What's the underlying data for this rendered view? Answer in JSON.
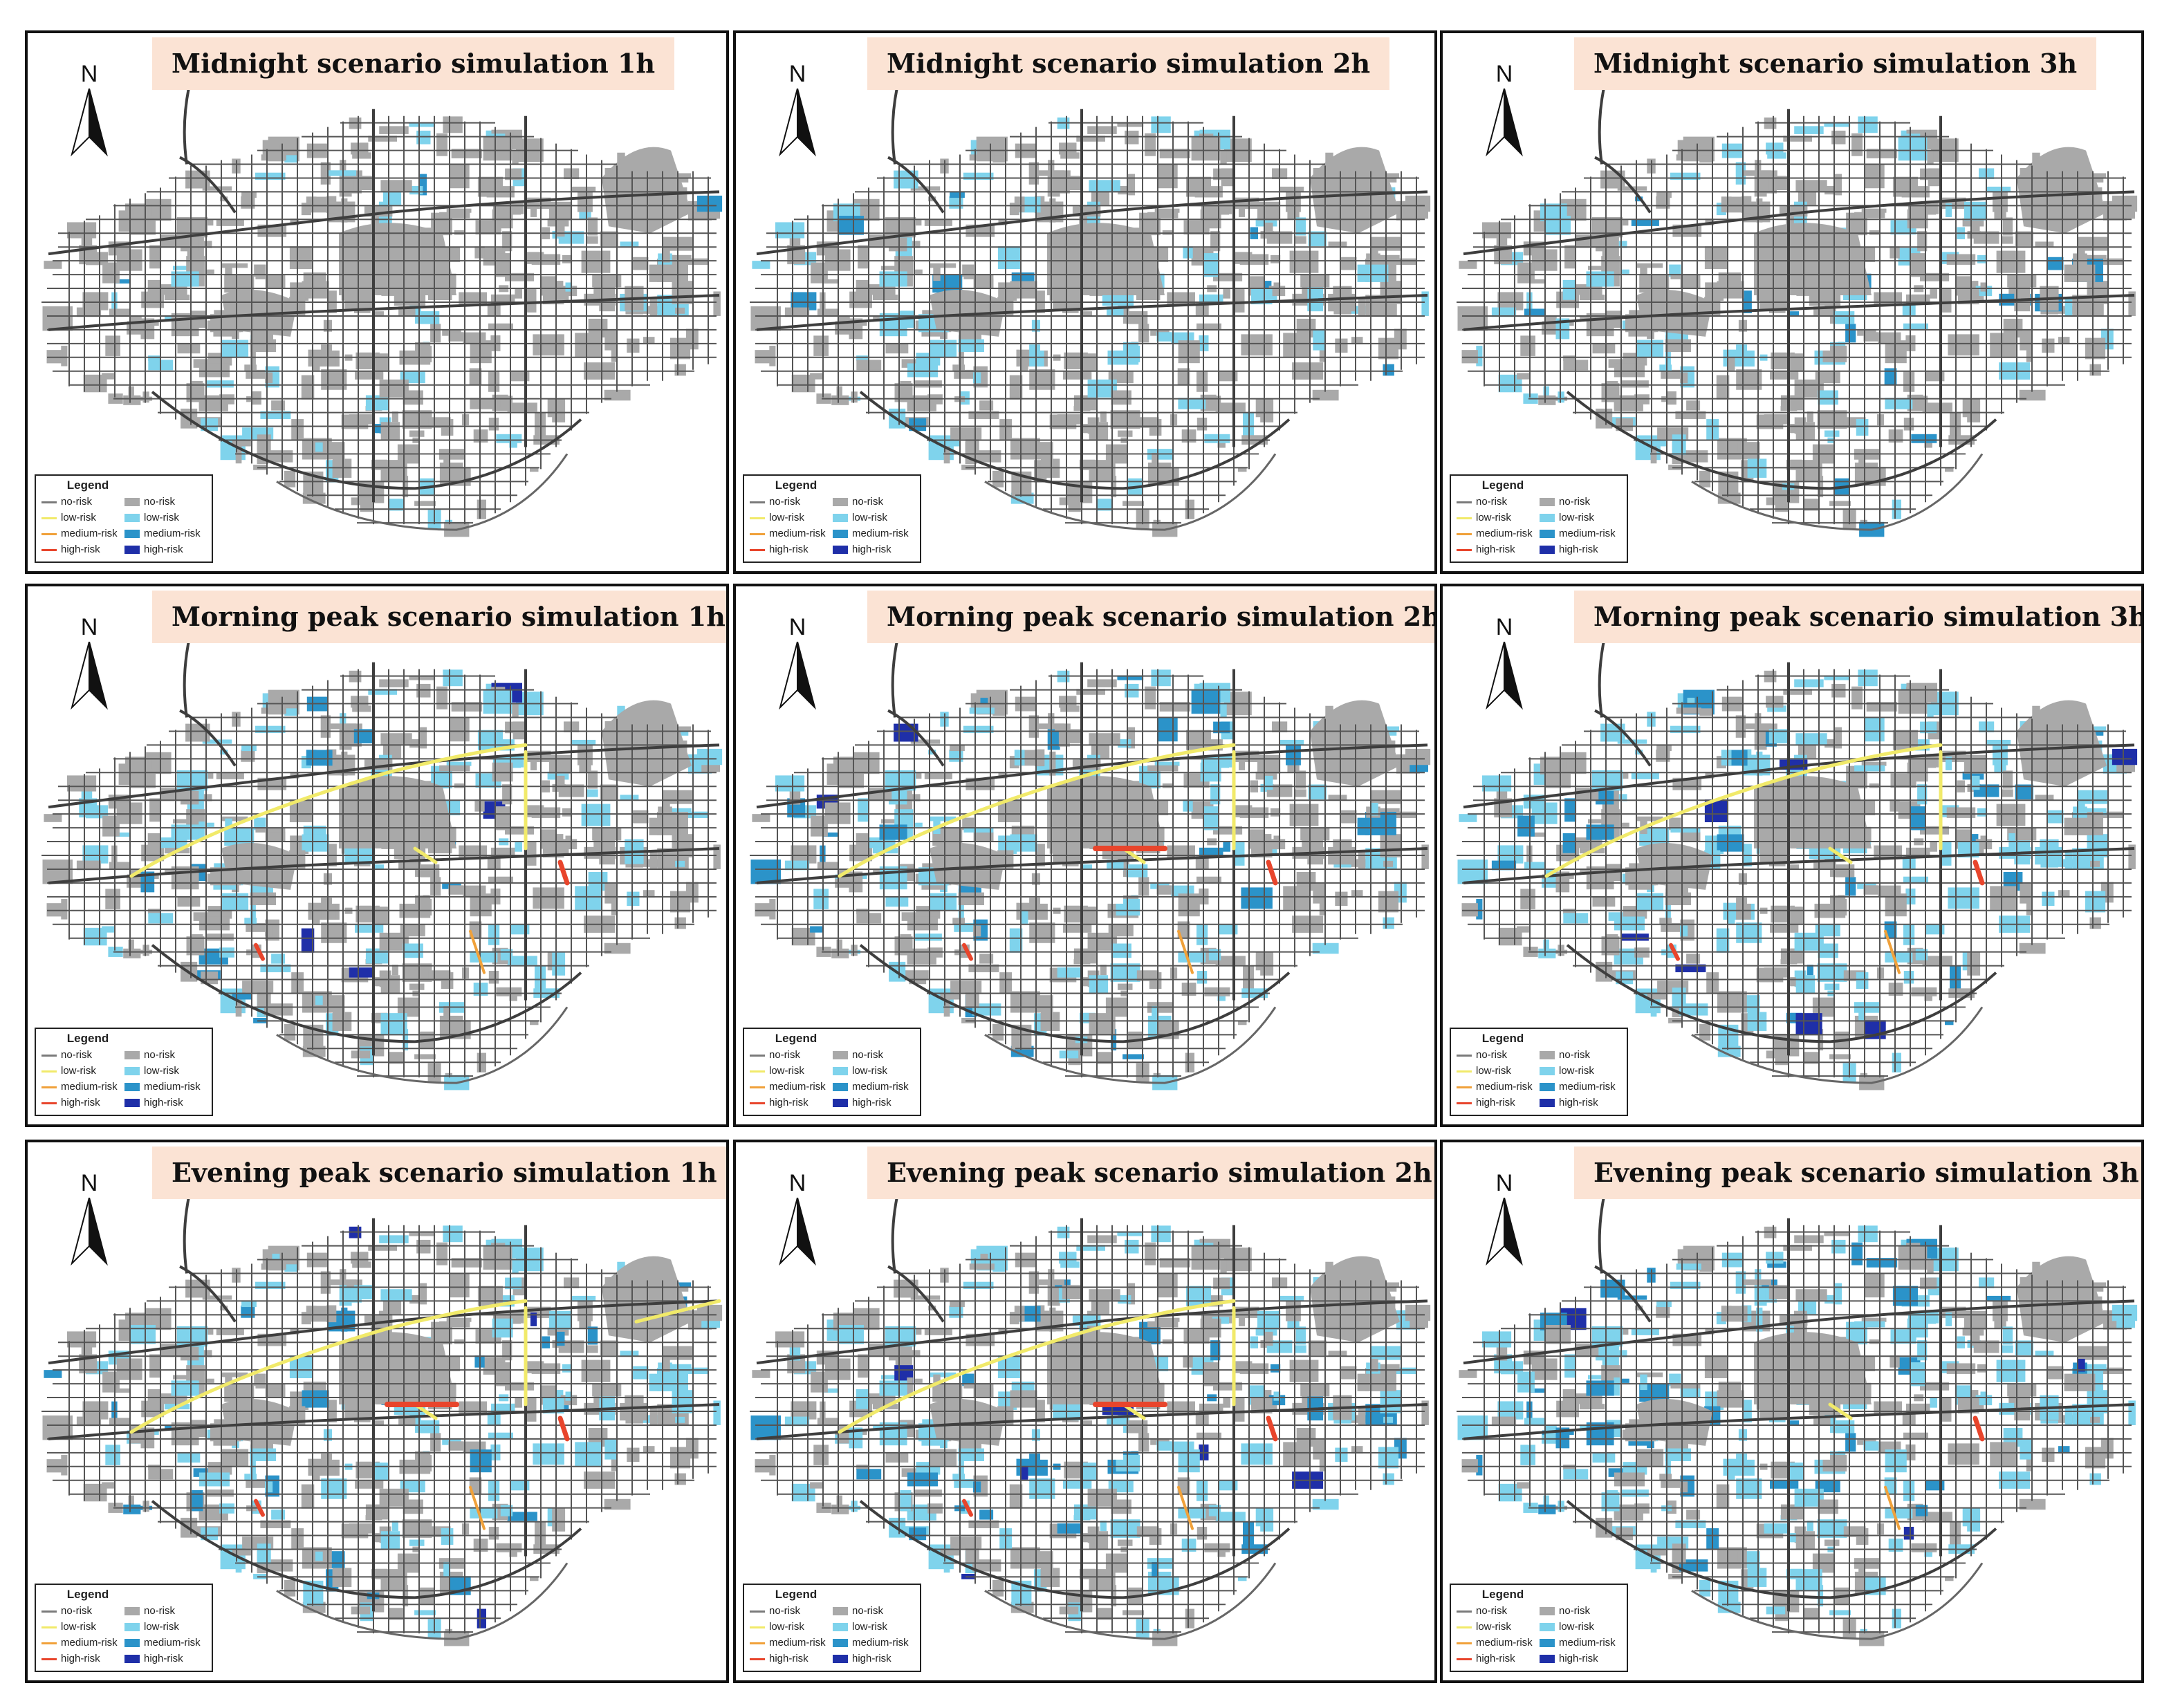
{
  "figure": {
    "north_label": "N",
    "legend_title": "Legend",
    "legend_line_items": [
      {
        "label": "no-risk",
        "color": "#7a7a7a"
      },
      {
        "label": "low-risk",
        "color": "#f1ea6a"
      },
      {
        "label": "medium-risk",
        "color": "#f0a13a"
      },
      {
        "label": "high-risk",
        "color": "#e8452c"
      }
    ],
    "legend_area_items": [
      {
        "label": "no-risk",
        "color": "#a9a9a9"
      },
      {
        "label": "low-risk",
        "color": "#7fd3ec"
      },
      {
        "label": "medium-risk",
        "color": "#2b93c9"
      },
      {
        "label": "high-risk",
        "color": "#1f2fa8"
      }
    ],
    "colors": {
      "road": "#555555",
      "land_no_risk": "#a9a9a9",
      "land_low": "#7fd3ec",
      "land_medium": "#2b93c9",
      "land_high": "#1f2fa8",
      "road_low": "#f1ea6a",
      "road_medium": "#f0a13a",
      "road_high": "#e8452c",
      "title_bg": "#fbe3d4"
    }
  },
  "panels": [
    {
      "title": "Midnight scenario simulation 1h",
      "scenario": "midnight",
      "hour": 1
    },
    {
      "title": "Midnight scenario simulation 2h",
      "scenario": "midnight",
      "hour": 2
    },
    {
      "title": "Midnight scenario simulation 3h",
      "scenario": "midnight",
      "hour": 3
    },
    {
      "title": "Morning peak scenario simulation 1h",
      "scenario": "morning",
      "hour": 1
    },
    {
      "title": "Morning peak scenario simulation 2h",
      "scenario": "morning",
      "hour": 2
    },
    {
      "title": "Morning peak scenario simulation 3h",
      "scenario": "morning",
      "hour": 3
    },
    {
      "title": "Evening peak scenario simulation 1h",
      "scenario": "evening",
      "hour": 1
    },
    {
      "title": "Evening peak scenario simulation 2h",
      "scenario": "evening",
      "hour": 2
    },
    {
      "title": "Evening peak scenario simulation 3h",
      "scenario": "evening",
      "hour": 3
    }
  ]
}
